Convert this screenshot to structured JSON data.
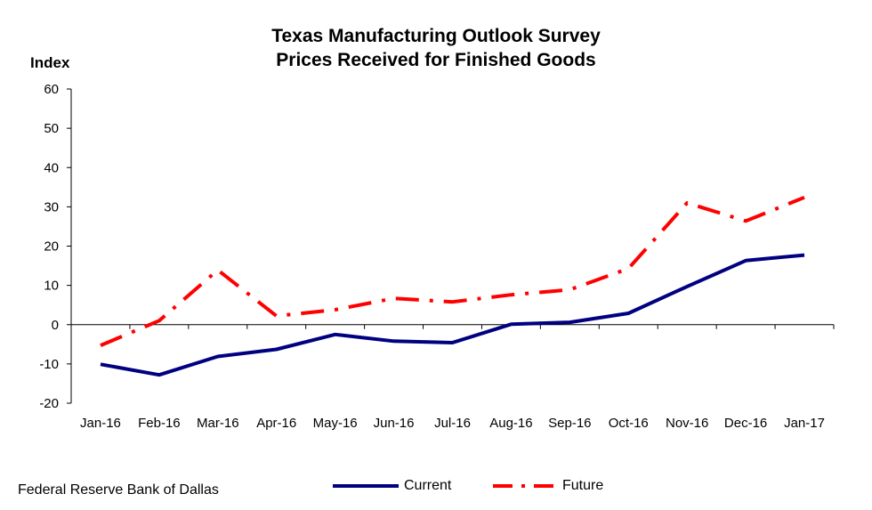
{
  "chart_data": {
    "type": "line",
    "title": "Texas Manufacturing Outlook  Survey",
    "subtitle": "Prices Received for Finished Goods",
    "ylabel": "Index",
    "xlabel": "",
    "ylim": [
      -20,
      60
    ],
    "yticks": [
      60,
      50,
      40,
      30,
      20,
      10,
      0,
      -10,
      -20
    ],
    "categories": [
      "Jan-16",
      "Feb-16",
      "Mar-16",
      "Apr-16",
      "May-16",
      "Jun-16",
      "Jul-16",
      "Aug-16",
      "Sep-16",
      "Oct-16",
      "Nov-16",
      "Dec-16",
      "Jan-17"
    ],
    "grid": false,
    "legend": "bottom",
    "series": [
      {
        "name": "Current",
        "color": "#000080",
        "style": "solid",
        "values": [
          -10.1,
          -12.8,
          -8.1,
          -6.3,
          -2.5,
          -4.2,
          -4.6,
          0.1,
          0.6,
          2.9,
          9.7,
          16.3,
          17.7
        ]
      },
      {
        "name": "Future",
        "color": "#ff0000",
        "style": "dash-dot",
        "values": [
          -5.3,
          1.0,
          13.9,
          2.2,
          3.8,
          6.7,
          5.8,
          7.6,
          8.9,
          14.3,
          31.0,
          26.4,
          32.4
        ]
      }
    ]
  },
  "footer": {
    "source": "Federal Reserve Bank of Dallas"
  }
}
